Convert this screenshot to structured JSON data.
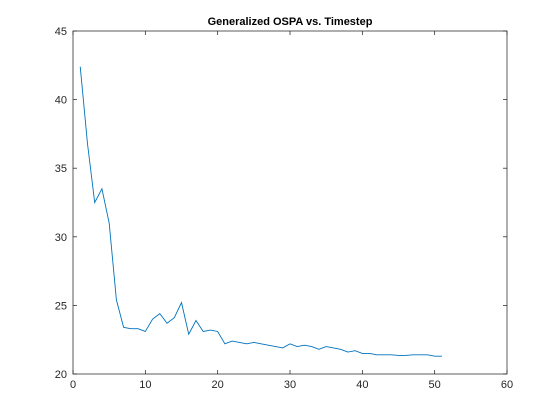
{
  "chart_data": {
    "type": "line",
    "title": "Generalized OSPA vs. Timestep",
    "xlabel": "",
    "ylabel": "",
    "xlim": [
      0,
      60
    ],
    "ylim": [
      20,
      45
    ],
    "xticks": [
      0,
      10,
      20,
      30,
      40,
      50,
      60
    ],
    "yticks": [
      20,
      25,
      30,
      35,
      40,
      45
    ],
    "grid": false,
    "series": [
      {
        "color": "#0072BD",
        "x": [
          1,
          2,
          3,
          4,
          5,
          6,
          7,
          8,
          9,
          10,
          11,
          12,
          13,
          14,
          15,
          16,
          17,
          18,
          19,
          20,
          21,
          22,
          23,
          24,
          25,
          26,
          27,
          28,
          29,
          30,
          31,
          32,
          33,
          34,
          35,
          36,
          37,
          38,
          39,
          40,
          41,
          42,
          43,
          44,
          45,
          46,
          47,
          48,
          49,
          50,
          51
        ],
        "y": [
          42.4,
          36.8,
          32.5,
          33.5,
          31.0,
          25.4,
          23.4,
          23.3,
          23.3,
          23.1,
          24.0,
          24.4,
          23.7,
          24.1,
          25.2,
          22.9,
          23.9,
          23.1,
          23.2,
          23.1,
          22.2,
          22.4,
          22.3,
          22.2,
          22.3,
          22.2,
          22.1,
          22.0,
          21.9,
          22.2,
          22.0,
          22.1,
          22.0,
          21.8,
          22.0,
          21.9,
          21.8,
          21.6,
          21.7,
          21.5,
          21.5,
          21.4,
          21.4,
          21.4,
          21.35,
          21.35,
          21.4,
          21.4,
          21.4,
          21.3,
          21.3
        ]
      }
    ]
  }
}
